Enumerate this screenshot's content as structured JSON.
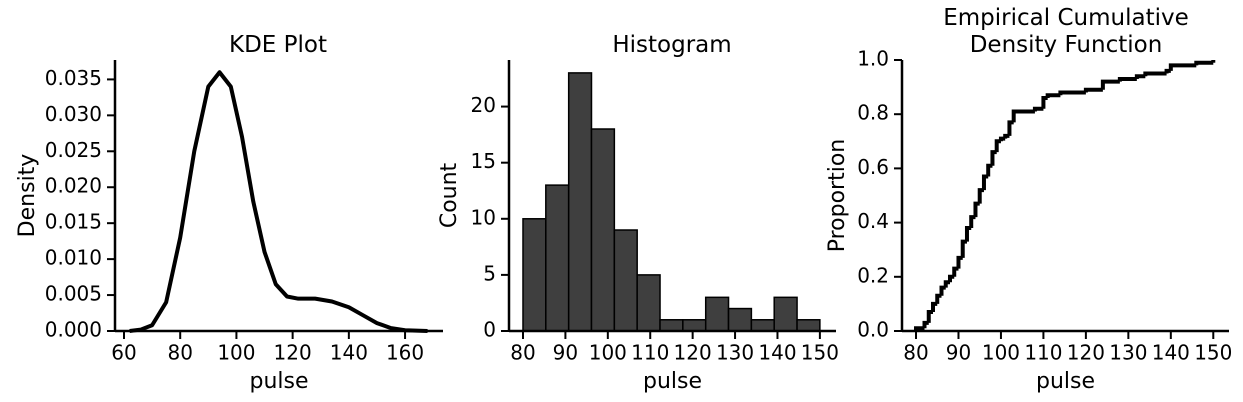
{
  "chart_data": [
    {
      "type": "line",
      "title": "KDE Plot",
      "xlabel": "pulse",
      "ylabel": "Density",
      "color": "#000000",
      "x": [
        62,
        66,
        70,
        75,
        80,
        85,
        90,
        94,
        98,
        102,
        106,
        110,
        114,
        118,
        122,
        128,
        134,
        140,
        145,
        150,
        155,
        160,
        168
      ],
      "values": [
        0.0,
        0.0002,
        0.0008,
        0.004,
        0.013,
        0.025,
        0.034,
        0.036,
        0.034,
        0.027,
        0.018,
        0.011,
        0.0065,
        0.0048,
        0.0045,
        0.0045,
        0.0041,
        0.0033,
        0.0022,
        0.0011,
        0.0004,
        0.0001,
        0.0
      ],
      "xlim": [
        56.8,
        173.5
      ],
      "ylim": [
        0,
        0.0377
      ],
      "xticks": [
        60,
        80,
        100,
        120,
        140,
        160
      ],
      "yticks": [
        {
          "value": 0,
          "label": "0.000"
        },
        0.005,
        {
          "value": 0.01,
          "label": "0.010"
        },
        0.015,
        {
          "value": 0.02,
          "label": "0.020"
        },
        0.025,
        {
          "value": 0.03,
          "label": "0.030"
        },
        0.035
      ]
    },
    {
      "type": "histogram",
      "title": "Histogram",
      "xlabel": "pulse",
      "ylabel": "Count",
      "color": "#3f3f3f",
      "bins": [
        80,
        85.38,
        90.77,
        96.15,
        101.54,
        106.92,
        112.31,
        117.69,
        123.08,
        128.46,
        133.85,
        139.23,
        144.62,
        150
      ],
      "values": [
        10,
        13,
        23,
        18,
        9,
        5,
        1,
        1,
        3,
        2,
        1,
        3,
        1
      ],
      "xlim": [
        76.7,
        153.8
      ],
      "ylim": [
        0,
        24.15
      ],
      "xticks": [
        80,
        90,
        100,
        110,
        120,
        130,
        140,
        150
      ],
      "yticks": [
        0,
        5,
        10,
        15,
        20
      ]
    },
    {
      "type": "ecdf",
      "title": "Empirical Cumulative Density Function",
      "xlabel": "pulse",
      "ylabel": "Proportion",
      "color": "#000000",
      "x": [
        80,
        82,
        83,
        84,
        85,
        86,
        87,
        88,
        89,
        90,
        91,
        92,
        93,
        94,
        95,
        96,
        97,
        98,
        99,
        100,
        101,
        102,
        103,
        108,
        110,
        111,
        114,
        120,
        124,
        128,
        132,
        134,
        139,
        140,
        146,
        150
      ],
      "values": [
        0.01,
        0.03,
        0.07,
        0.1,
        0.13,
        0.16,
        0.18,
        0.2,
        0.23,
        0.27,
        0.33,
        0.38,
        0.42,
        0.47,
        0.52,
        0.57,
        0.61,
        0.66,
        0.7,
        0.71,
        0.72,
        0.77,
        0.81,
        0.82,
        0.86,
        0.87,
        0.88,
        0.89,
        0.92,
        0.93,
        0.94,
        0.95,
        0.96,
        0.98,
        0.99,
        1.0
      ],
      "xlim": [
        76.7,
        153.7
      ],
      "ylim": [
        0,
        1.0
      ],
      "xticks": [
        80,
        90,
        100,
        110,
        120,
        130,
        140,
        150
      ],
      "yticks": [
        {
          "value": 0,
          "label": "0.0"
        },
        0.2,
        0.4,
        0.6,
        0.8,
        {
          "value": 1,
          "label": "1.0"
        }
      ]
    }
  ]
}
